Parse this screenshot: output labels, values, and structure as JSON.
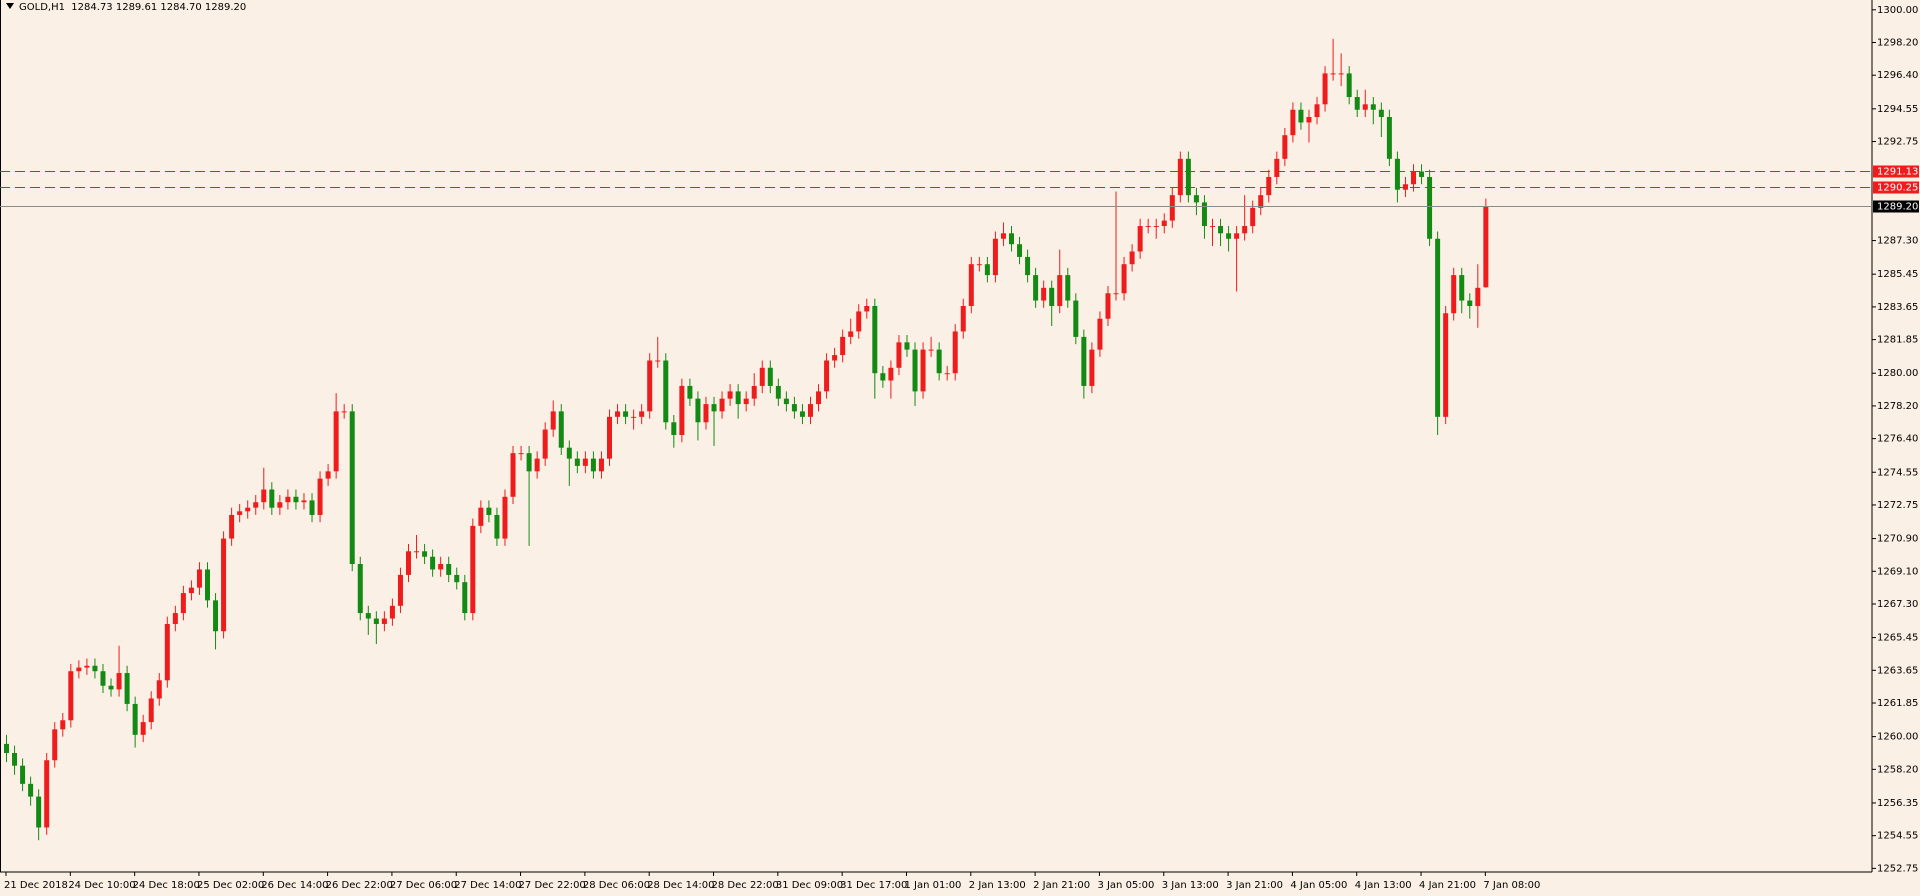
{
  "chart_data": {
    "type": "candlestick",
    "title": "GOLD,H1  1284.73 1289.61 1284.70 1289.20",
    "up_color": "#ee1c1c",
    "down_color": "#138a13",
    "background": "#fbf0e5",
    "categories": [
      "21 Dec 2018",
      null,
      null,
      null,
      null,
      null,
      null,
      null,
      "24 Dec 10:00",
      null,
      null,
      null,
      null,
      null,
      null,
      null,
      "24 Dec 18:00",
      null,
      null,
      null,
      null,
      null,
      null,
      null,
      "25 Dec 02:00",
      null,
      null,
      null,
      null,
      null,
      null,
      null,
      "26 Dec 14:00",
      null,
      null,
      null,
      null,
      null,
      null,
      null,
      "26 Dec 22:00",
      null,
      null,
      null,
      null,
      null,
      null,
      null,
      "27 Dec 06:00",
      null,
      null,
      null,
      null,
      null,
      null,
      null,
      "27 Dec 14:00",
      null,
      null,
      null,
      null,
      null,
      null,
      null,
      "27 Dec 22:00",
      null,
      null,
      null,
      null,
      null,
      null,
      null,
      "28 Dec 06:00",
      null,
      null,
      null,
      null,
      null,
      null,
      null,
      "28 Dec 14:00",
      null,
      null,
      null,
      null,
      null,
      null,
      null,
      "28 Dec 22:00",
      null,
      null,
      null,
      null,
      null,
      null,
      null,
      "31 Dec 09:00",
      null,
      null,
      null,
      null,
      null,
      null,
      null,
      "31 Dec 17:00",
      null,
      null,
      null,
      null,
      null,
      null,
      null,
      "1 Jan 01:00",
      null,
      null,
      null,
      null,
      null,
      null,
      null,
      "2 Jan 13:00",
      null,
      null,
      null,
      null,
      null,
      null,
      null,
      "2 Jan 21:00",
      null,
      null,
      null,
      null,
      null,
      null,
      null,
      "3 Jan 05:00",
      null,
      null,
      null,
      null,
      null,
      null,
      null,
      "3 Jan 13:00",
      null,
      null,
      null,
      null,
      null,
      null,
      null,
      "3 Jan 21:00",
      null,
      null,
      null,
      null,
      null,
      null,
      null,
      "4 Jan 05:00",
      null,
      null,
      null,
      null,
      null,
      null,
      null,
      "4 Jan 13:00",
      null,
      null,
      null,
      null,
      null,
      null,
      null,
      "4 Jan 21:00",
      null,
      null,
      null,
      null,
      null,
      null,
      null,
      "7 Jan 08:00"
    ],
    "open": [
      1259.6,
      1259.1,
      1258.4,
      1257.4,
      1256.7,
      1255.0,
      1258.7,
      1260.4,
      1260.9,
      1263.6,
      1263.8,
      1263.9,
      1263.6,
      1262.8,
      1262.6,
      1263.5,
      1261.8,
      1260.1,
      1260.8,
      1262.1,
      1263.1,
      1266.2,
      1266.8,
      1267.9,
      1268.2,
      1269.2,
      1267.5,
      1265.8,
      1270.9,
      1272.2,
      1272.4,
      1272.6,
      1272.9,
      1273.6,
      1272.6,
      1272.9,
      1273.2,
      1272.9,
      1273.0,
      1272.2,
      1274.2,
      1274.6,
      1277.9,
      1277.9,
      1269.5,
      1266.8,
      1266.5,
      1266.2,
      1266.5,
      1267.2,
      1268.9,
      1270.2,
      1270.2,
      1269.9,
      1269.2,
      1269.5,
      1268.9,
      1268.5,
      1266.8,
      1271.6,
      1272.6,
      1272.2,
      1270.9,
      1273.2,
      1275.6,
      1275.6,
      1274.6,
      1275.3,
      1276.9,
      1277.9,
      1275.9,
      1275.3,
      1274.9,
      1275.3,
      1274.6,
      1275.3,
      1277.6,
      1277.9,
      1277.6,
      1277.6,
      1277.9,
      1280.7,
      1280.7,
      1277.3,
      1276.6,
      1279.3,
      1278.6,
      1277.3,
      1278.3,
      1277.9,
      1278.6,
      1279.0,
      1278.3,
      1278.6,
      1279.3,
      1280.3,
      1279.3,
      1278.6,
      1278.3,
      1277.9,
      1277.6,
      1278.3,
      1279.0,
      1280.7,
      1281.0,
      1282.0,
      1282.3,
      1283.4,
      1283.7,
      1280.0,
      1279.6,
      1280.3,
      1281.7,
      1281.3,
      1279.0,
      1281.3,
      1281.3,
      1280.0,
      1280.0,
      1282.3,
      1283.7,
      1286.0,
      1286.0,
      1285.4,
      1287.4,
      1287.7,
      1287.1,
      1286.4,
      1285.4,
      1284.0,
      1284.7,
      1283.7,
      1285.4,
      1284.0,
      1282.0,
      1279.3,
      1281.3,
      1283.0,
      1284.4,
      1284.4,
      1286.0,
      1286.7,
      1288.1,
      1288.1,
      1288.1,
      1288.4,
      1289.8,
      1291.8,
      1289.8,
      1289.4,
      1288.1,
      1288.1,
      1287.7,
      1287.4,
      1287.7,
      1288.1,
      1289.1,
      1289.8,
      1290.8,
      1291.8,
      1293.1,
      1294.5,
      1293.8,
      1294.1,
      1294.8,
      1296.5,
      1296.5,
      1296.5,
      1295.2,
      1294.5,
      1294.8,
      1294.5,
      1294.1,
      1291.8,
      1290.1,
      1290.4,
      1291.1,
      1290.8,
      1287.4,
      1277.6,
      1283.3,
      1285.4,
      1284.0,
      1283.7,
      1284.73
    ],
    "high": [
      1260.1,
      1259.5,
      1258.8,
      1257.8,
      1257.1,
      1259.1,
      1260.8,
      1261.3,
      1264.0,
      1264.2,
      1264.3,
      1264.3,
      1264.0,
      1263.2,
      1265.0,
      1263.9,
      1262.2,
      1261.2,
      1262.5,
      1263.5,
      1266.6,
      1267.2,
      1268.3,
      1268.6,
      1269.6,
      1269.6,
      1267.9,
      1271.3,
      1272.6,
      1272.8,
      1273.0,
      1273.3,
      1274.8,
      1274.0,
      1273.3,
      1273.6,
      1273.6,
      1273.4,
      1273.4,
      1274.6,
      1275.0,
      1278.9,
      1278.3,
      1278.3,
      1269.9,
      1267.2,
      1266.9,
      1266.9,
      1267.6,
      1269.3,
      1270.6,
      1271.1,
      1270.6,
      1270.3,
      1269.9,
      1269.9,
      1269.3,
      1268.9,
      1272.0,
      1273.0,
      1273.0,
      1272.6,
      1273.6,
      1276.0,
      1276.0,
      1276.0,
      1275.7,
      1277.3,
      1278.5,
      1278.3,
      1276.3,
      1275.7,
      1275.7,
      1275.7,
      1275.7,
      1278.0,
      1278.3,
      1278.3,
      1278.0,
      1278.3,
      1281.1,
      1282.0,
      1281.1,
      1277.7,
      1279.7,
      1279.7,
      1279.0,
      1278.7,
      1278.7,
      1279.0,
      1279.4,
      1279.4,
      1279.0,
      1280.0,
      1280.7,
      1280.7,
      1279.7,
      1279.0,
      1278.7,
      1278.3,
      1278.7,
      1279.4,
      1281.1,
      1281.4,
      1282.4,
      1283.0,
      1283.8,
      1284.1,
      1284.1,
      1280.4,
      1280.7,
      1282.1,
      1282.1,
      1281.7,
      1281.7,
      1282.0,
      1281.7,
      1280.4,
      1282.7,
      1284.1,
      1286.4,
      1286.4,
      1286.4,
      1287.8,
      1288.3,
      1288.1,
      1287.5,
      1286.8,
      1285.8,
      1285.1,
      1285.1,
      1286.8,
      1285.8,
      1284.4,
      1282.4,
      1281.7,
      1283.4,
      1284.8,
      1290.0,
      1286.4,
      1287.1,
      1288.5,
      1288.5,
      1288.5,
      1288.8,
      1290.2,
      1292.2,
      1292.2,
      1290.2,
      1289.8,
      1288.5,
      1288.5,
      1288.1,
      1288.1,
      1289.8,
      1289.5,
      1290.2,
      1291.2,
      1292.2,
      1293.5,
      1294.9,
      1294.9,
      1294.5,
      1295.2,
      1296.9,
      1298.4,
      1297.6,
      1296.9,
      1295.6,
      1295.6,
      1295.2,
      1294.9,
      1294.5,
      1292.2,
      1290.8,
      1291.5,
      1291.5,
      1291.2,
      1287.8,
      1283.7,
      1285.8,
      1285.8,
      1284.4,
      1286.0,
      1289.61
    ],
    "low": [
      1258.6,
      1257.9,
      1257.0,
      1256.2,
      1254.3,
      1254.6,
      1258.3,
      1260.0,
      1260.5,
      1263.2,
      1263.4,
      1263.2,
      1262.4,
      1262.2,
      1262.2,
      1261.4,
      1259.4,
      1259.7,
      1260.4,
      1261.7,
      1262.7,
      1265.8,
      1266.4,
      1267.5,
      1267.8,
      1267.1,
      1264.8,
      1265.4,
      1270.5,
      1271.8,
      1272.0,
      1272.2,
      1272.5,
      1272.2,
      1272.2,
      1272.5,
      1272.5,
      1272.5,
      1271.8,
      1271.8,
      1273.8,
      1274.2,
      1277.5,
      1269.1,
      1266.4,
      1265.6,
      1265.1,
      1265.8,
      1266.1,
      1266.8,
      1268.5,
      1269.8,
      1269.5,
      1268.8,
      1268.8,
      1268.5,
      1268.1,
      1266.4,
      1266.4,
      1271.2,
      1271.8,
      1270.5,
      1270.5,
      1272.8,
      1275.2,
      1270.5,
      1274.2,
      1274.9,
      1276.5,
      1275.5,
      1273.8,
      1274.5,
      1274.5,
      1274.2,
      1274.2,
      1274.9,
      1277.2,
      1277.2,
      1276.9,
      1277.2,
      1277.5,
      1280.3,
      1276.9,
      1275.9,
      1276.2,
      1278.2,
      1276.3,
      1276.9,
      1276.0,
      1277.5,
      1278.2,
      1277.5,
      1277.9,
      1278.2,
      1278.9,
      1278.9,
      1278.2,
      1277.9,
      1277.5,
      1277.2,
      1277.2,
      1277.9,
      1278.6,
      1280.3,
      1280.6,
      1281.6,
      1281.9,
      1283.0,
      1278.6,
      1279.2,
      1278.6,
      1279.9,
      1280.9,
      1278.2,
      1278.6,
      1280.9,
      1279.6,
      1279.6,
      1279.6,
      1281.9,
      1283.3,
      1285.6,
      1285.0,
      1285.0,
      1287.0,
      1286.7,
      1286.0,
      1285.0,
      1283.6,
      1283.6,
      1282.6,
      1283.3,
      1283.6,
      1281.6,
      1278.6,
      1278.9,
      1280.9,
      1282.6,
      1284.0,
      1284.0,
      1285.6,
      1286.3,
      1287.7,
      1287.4,
      1287.7,
      1288.0,
      1289.4,
      1289.4,
      1288.7,
      1287.4,
      1287.0,
      1287.0,
      1286.7,
      1284.5,
      1287.3,
      1287.7,
      1288.7,
      1289.4,
      1290.4,
      1291.4,
      1292.7,
      1293.4,
      1292.7,
      1293.7,
      1294.4,
      1296.1,
      1295.8,
      1294.8,
      1294.1,
      1294.1,
      1293.7,
      1293.0,
      1291.4,
      1289.4,
      1289.7,
      1290.0,
      1290.4,
      1287.0,
      1276.6,
      1277.2,
      1282.9,
      1283.3,
      1283.0,
      1282.5,
      1284.7
    ],
    "close": [
      1259.1,
      1258.4,
      1257.4,
      1256.7,
      1255.0,
      1258.7,
      1260.4,
      1260.9,
      1263.6,
      1263.8,
      1263.9,
      1263.6,
      1262.8,
      1262.6,
      1263.5,
      1261.8,
      1260.1,
      1260.8,
      1262.1,
      1263.1,
      1266.2,
      1266.8,
      1267.9,
      1268.2,
      1269.2,
      1267.5,
      1265.8,
      1270.9,
      1272.2,
      1272.4,
      1272.6,
      1272.9,
      1273.6,
      1272.6,
      1272.9,
      1273.2,
      1272.9,
      1273.0,
      1272.2,
      1274.2,
      1274.6,
      1277.9,
      1277.9,
      1269.5,
      1266.8,
      1266.5,
      1266.2,
      1266.5,
      1267.2,
      1268.9,
      1270.2,
      1270.2,
      1269.9,
      1269.2,
      1269.5,
      1268.9,
      1268.5,
      1266.8,
      1271.6,
      1272.6,
      1272.2,
      1270.9,
      1273.2,
      1275.6,
      1275.6,
      1274.6,
      1275.3,
      1276.9,
      1277.9,
      1275.9,
      1275.3,
      1274.9,
      1275.3,
      1274.6,
      1275.3,
      1277.6,
      1277.9,
      1277.6,
      1277.6,
      1277.9,
      1280.7,
      1280.7,
      1277.3,
      1276.6,
      1279.3,
      1278.6,
      1277.3,
      1278.3,
      1277.9,
      1278.6,
      1279.0,
      1278.3,
      1278.6,
      1279.3,
      1280.3,
      1279.3,
      1278.6,
      1278.3,
      1277.9,
      1277.6,
      1278.3,
      1279.0,
      1280.7,
      1281.0,
      1282.0,
      1282.3,
      1283.4,
      1283.7,
      1280.0,
      1279.6,
      1280.3,
      1281.7,
      1281.3,
      1279.0,
      1281.3,
      1281.3,
      1280.0,
      1280.0,
      1282.3,
      1283.7,
      1286.0,
      1286.0,
      1285.4,
      1287.4,
      1287.7,
      1287.1,
      1286.4,
      1285.4,
      1284.0,
      1284.7,
      1283.7,
      1285.4,
      1284.0,
      1282.0,
      1279.3,
      1281.3,
      1283.0,
      1284.4,
      1284.4,
      1286.0,
      1286.7,
      1288.1,
      1288.1,
      1288.1,
      1288.4,
      1289.8,
      1291.8,
      1289.8,
      1289.4,
      1288.1,
      1288.1,
      1287.7,
      1287.4,
      1287.7,
      1288.1,
      1289.1,
      1289.8,
      1290.8,
      1291.8,
      1293.1,
      1294.5,
      1293.8,
      1294.1,
      1294.8,
      1296.5,
      1296.5,
      1296.5,
      1295.2,
      1294.5,
      1294.8,
      1294.5,
      1294.1,
      1291.8,
      1290.1,
      1290.4,
      1291.1,
      1290.8,
      1287.4,
      1277.6,
      1283.3,
      1285.4,
      1284.0,
      1283.7,
      1284.7,
      1289.2
    ],
    "ylim": [
      1252.55,
      1300.54
    ],
    "yticks": [
      {
        "value": 1300.0,
        "label": "1300.00"
      },
      {
        "value": 1298.2,
        "label": "1298.20"
      },
      {
        "value": 1296.4,
        "label": "1296.40"
      },
      {
        "value": 1294.55,
        "label": "1294.55"
      },
      {
        "value": 1292.75,
        "label": "1292.75"
      },
      {
        "value": 1287.3,
        "label": "1287.30"
      },
      {
        "value": 1285.45,
        "label": "1285.45"
      },
      {
        "value": 1283.65,
        "label": "1283.65"
      },
      {
        "value": 1281.85,
        "label": "1281.85"
      },
      {
        "value": 1280.0,
        "label": "1280.00"
      },
      {
        "value": 1278.2,
        "label": "1278.20"
      },
      {
        "value": 1276.4,
        "label": "1276.40"
      },
      {
        "value": 1274.55,
        "label": "1274.55"
      },
      {
        "value": 1272.75,
        "label": "1272.75"
      },
      {
        "value": 1270.9,
        "label": "1270.90"
      },
      {
        "value": 1269.1,
        "label": "1269.10"
      },
      {
        "value": 1267.3,
        "label": "1267.30"
      },
      {
        "value": 1265.45,
        "label": "1265.45"
      },
      {
        "value": 1263.65,
        "label": "1263.65"
      },
      {
        "value": 1261.85,
        "label": "1261.85"
      },
      {
        "value": 1260.0,
        "label": "1260.00"
      },
      {
        "value": 1258.2,
        "label": "1258.20"
      },
      {
        "value": 1256.35,
        "label": "1256.35"
      },
      {
        "value": 1254.55,
        "label": "1254.55"
      },
      {
        "value": 1252.75,
        "label": "1252.75"
      }
    ],
    "levels": [
      {
        "value": 1291.13,
        "label": "1291.13",
        "color": "#ee1c1c",
        "dashed": true
      },
      {
        "value": 1290.25,
        "label": "1290.25",
        "color": "#ee1c1c",
        "dashed": true
      },
      {
        "value": 1289.2,
        "label": "1289.20",
        "color": "#000000",
        "dashed": false
      }
    ]
  }
}
